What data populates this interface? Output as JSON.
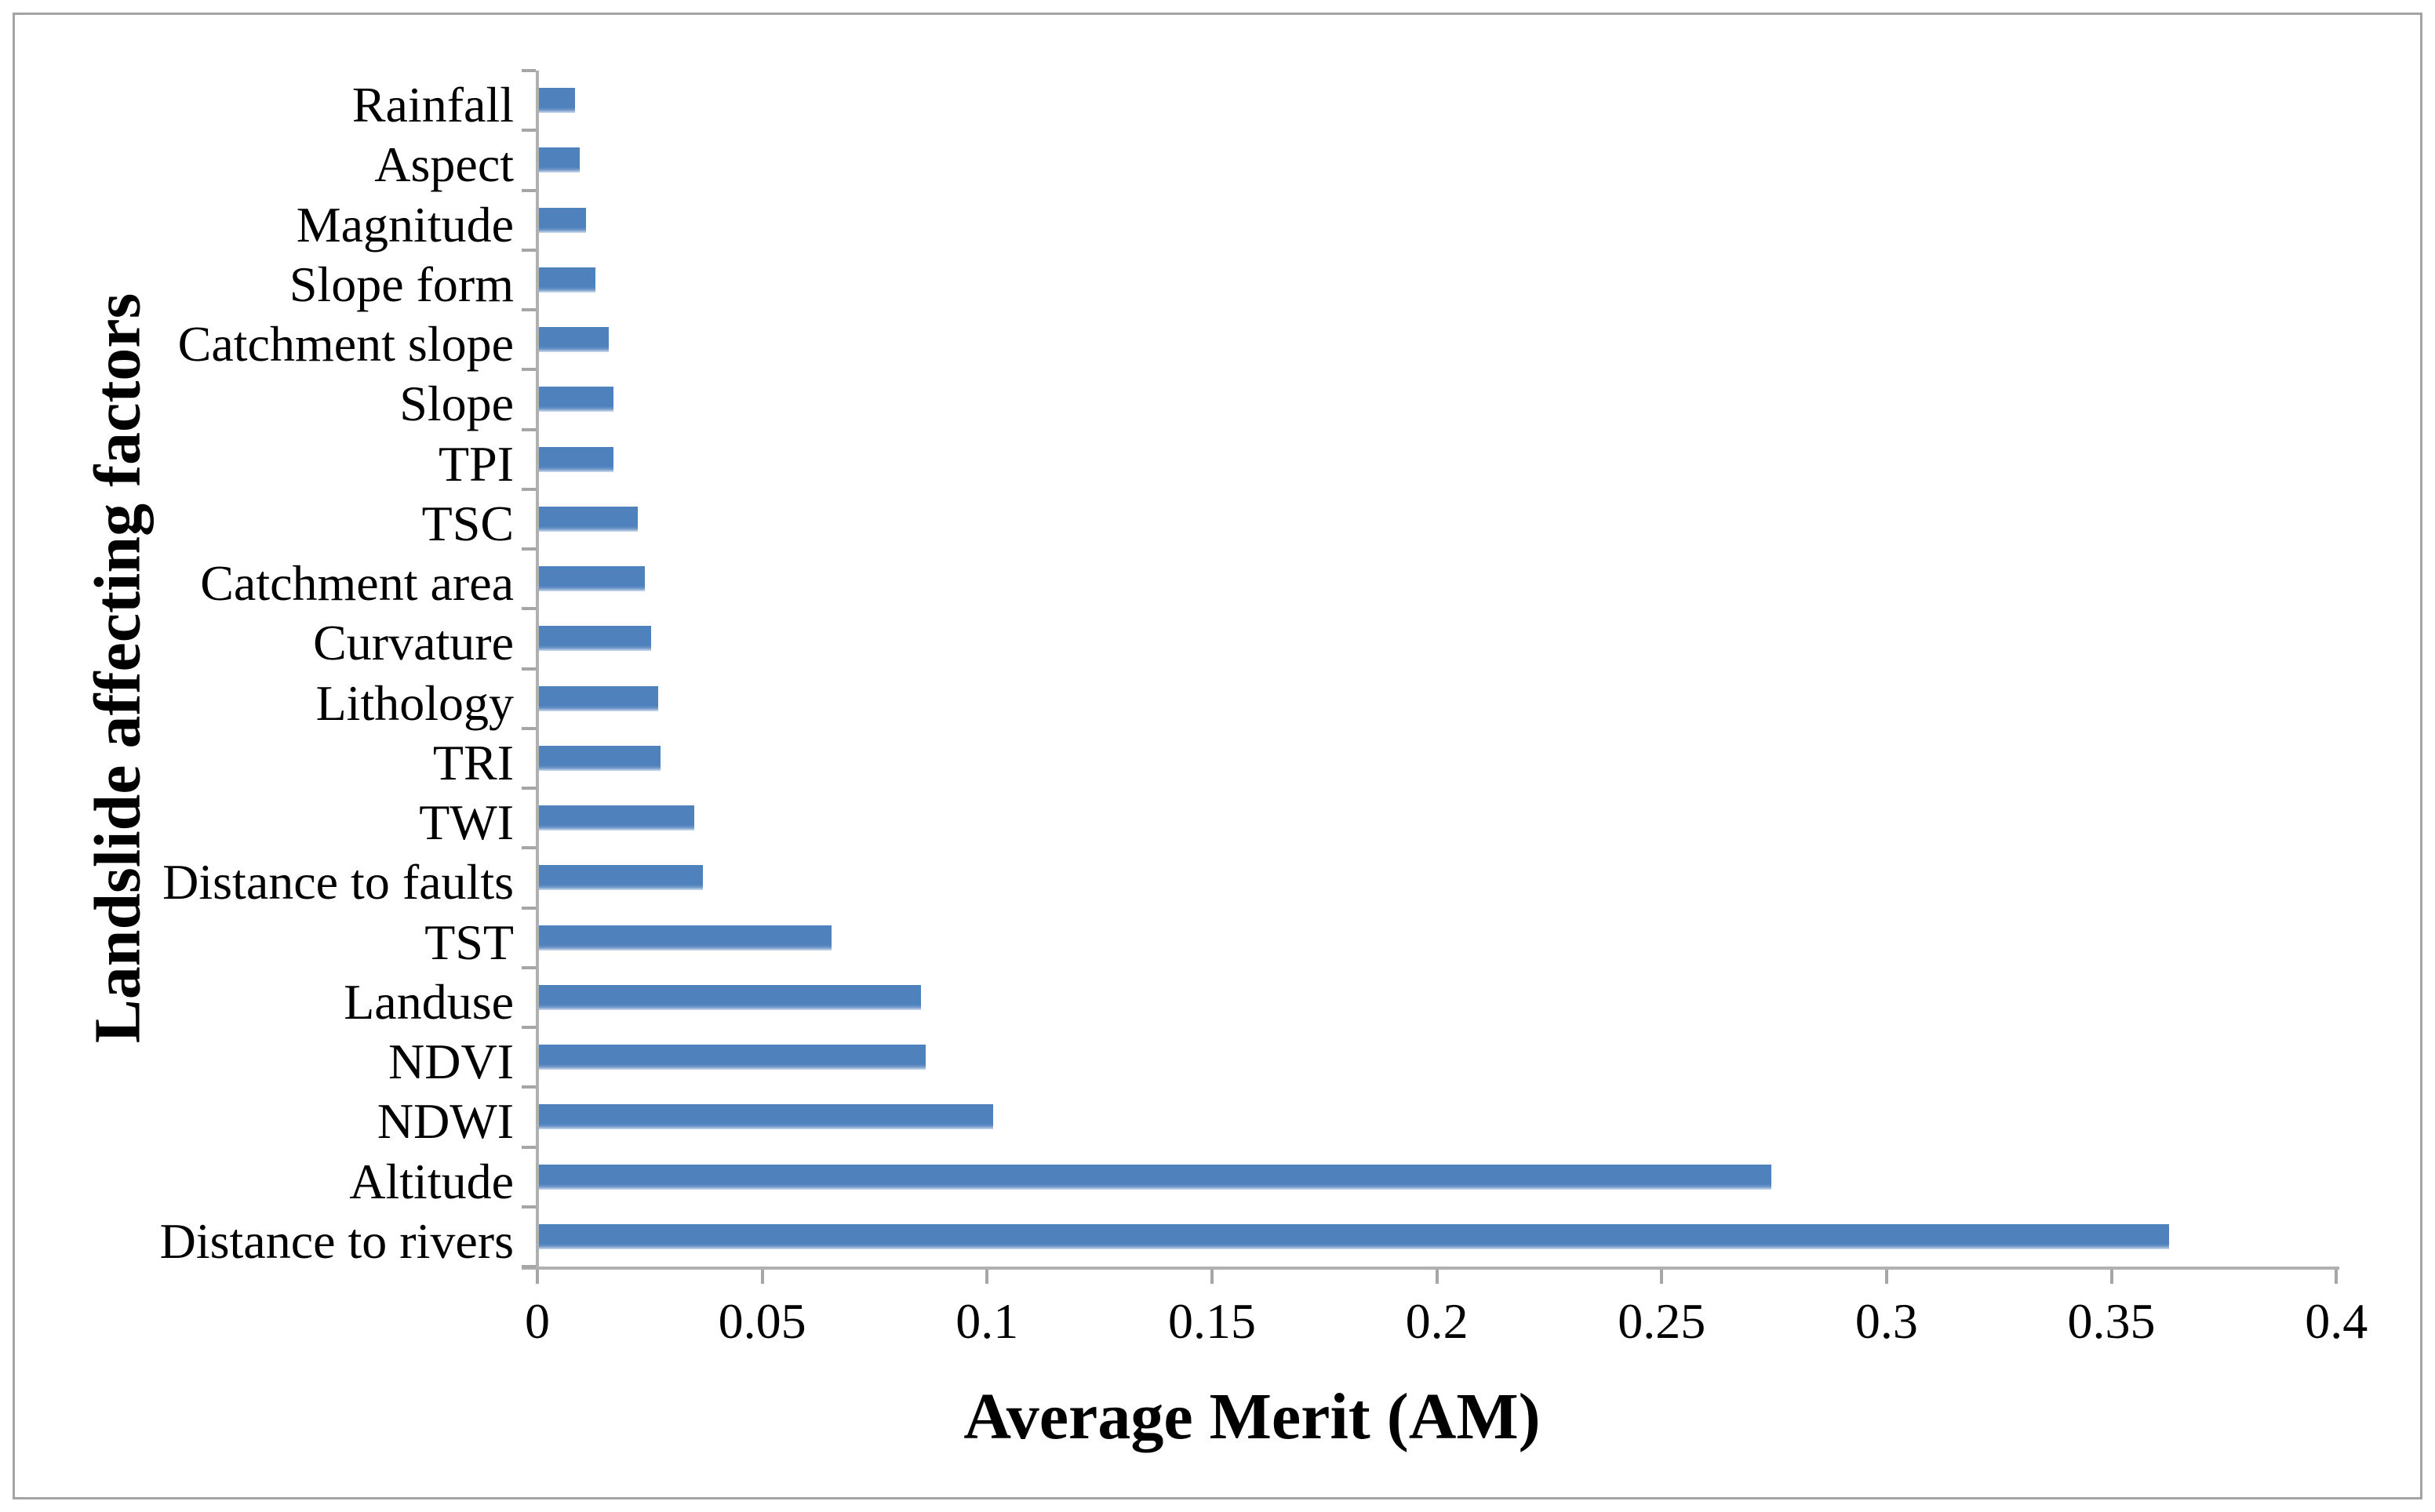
{
  "chart_data": {
    "type": "bar",
    "orientation": "horizontal",
    "title": "",
    "xlabel": "Average Merit (AM)",
    "ylabel": "Landslide affecting factors",
    "xlim": [
      0,
      0.4
    ],
    "x_tick_labels": [
      "0",
      "0.05",
      "0.1",
      "0.15",
      "0.2",
      "0.25",
      "0.3",
      "0.35",
      "0.4"
    ],
    "grid": "off",
    "legend": "none",
    "bar_color": "#4f81bd",
    "axis_color": "#a6a6a6",
    "categories_top_to_bottom": [
      "Rainfall",
      "Aspect",
      "Magnitude",
      "Slope form",
      "Catchment slope",
      "Slope",
      "TPI",
      "TSC",
      "Catchment area",
      "Curvature",
      "Lithology",
      "TRI",
      "TWI",
      "Distance to faults",
      "TST",
      "Landuse",
      "NDVI",
      "NDWI",
      "Altitude",
      "Distance to rivers"
    ],
    "values_top_to_bottom": [
      0.008,
      0.009,
      0.0105,
      0.0125,
      0.0155,
      0.0165,
      0.0165,
      0.022,
      0.0235,
      0.025,
      0.0265,
      0.027,
      0.0345,
      0.0365,
      0.065,
      0.085,
      0.086,
      0.101,
      0.274,
      0.3625
    ]
  }
}
